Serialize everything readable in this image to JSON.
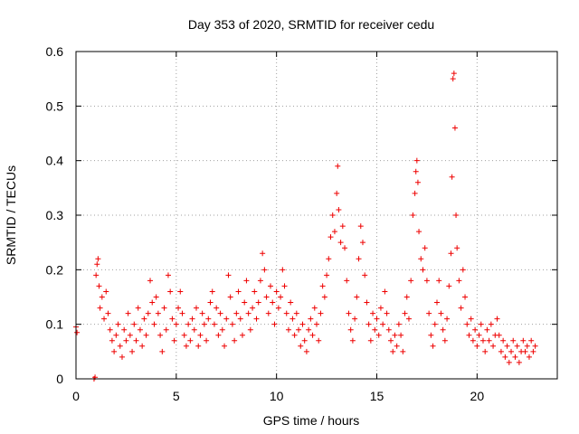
{
  "chart_data": {
    "type": "scatter",
    "title": "Day 353 of 2020, SRMTID for receiver cedu",
    "xlabel": "GPS time / hours",
    "ylabel": "SRMTID / TECUs",
    "xlim": [
      0,
      24
    ],
    "ylim": [
      0,
      0.6
    ],
    "xticks": [
      0,
      5,
      10,
      15,
      20
    ],
    "yticks": [
      0,
      0.1,
      0.2,
      0.3,
      0.4,
      0.5,
      0.6
    ],
    "xtick_labels": [
      "0",
      "5",
      "10",
      "15",
      "20"
    ],
    "ytick_labels": [
      "0",
      "0.1",
      "0.2",
      "0.3",
      "0.4",
      "0.5",
      "0.6"
    ],
    "grid": true,
    "marker": "+",
    "color": "#ee0000",
    "series": [
      {
        "name": "SRMTID",
        "points": [
          [
            0.0,
            0.095
          ],
          [
            0.05,
            0.085
          ],
          [
            0.9,
            0.0
          ],
          [
            0.95,
            0.003
          ],
          [
            1.0,
            0.19
          ],
          [
            1.05,
            0.21
          ],
          [
            1.1,
            0.22
          ],
          [
            1.15,
            0.17
          ],
          [
            1.2,
            0.13
          ],
          [
            1.3,
            0.15
          ],
          [
            1.4,
            0.11
          ],
          [
            1.5,
            0.16
          ],
          [
            1.6,
            0.12
          ],
          [
            1.7,
            0.09
          ],
          [
            1.8,
            0.07
          ],
          [
            1.9,
            0.05
          ],
          [
            2.0,
            0.08
          ],
          [
            2.1,
            0.1
          ],
          [
            2.2,
            0.06
          ],
          [
            2.3,
            0.04
          ],
          [
            2.4,
            0.09
          ],
          [
            2.5,
            0.07
          ],
          [
            2.6,
            0.12
          ],
          [
            2.7,
            0.08
          ],
          [
            2.8,
            0.05
          ],
          [
            2.9,
            0.1
          ],
          [
            3.0,
            0.07
          ],
          [
            3.1,
            0.13
          ],
          [
            3.2,
            0.09
          ],
          [
            3.3,
            0.06
          ],
          [
            3.4,
            0.11
          ],
          [
            3.5,
            0.08
          ],
          [
            3.6,
            0.12
          ],
          [
            3.7,
            0.18
          ],
          [
            3.8,
            0.14
          ],
          [
            3.9,
            0.1
          ],
          [
            4.0,
            0.15
          ],
          [
            4.1,
            0.12
          ],
          [
            4.2,
            0.08
          ],
          [
            4.3,
            0.05
          ],
          [
            4.4,
            0.13
          ],
          [
            4.5,
            0.09
          ],
          [
            4.6,
            0.19
          ],
          [
            4.7,
            0.16
          ],
          [
            4.8,
            0.11
          ],
          [
            4.9,
            0.07
          ],
          [
            5.0,
            0.1
          ],
          [
            5.1,
            0.13
          ],
          [
            5.2,
            0.16
          ],
          [
            5.3,
            0.12
          ],
          [
            5.4,
            0.08
          ],
          [
            5.5,
            0.06
          ],
          [
            5.6,
            0.1
          ],
          [
            5.7,
            0.07
          ],
          [
            5.8,
            0.11
          ],
          [
            5.9,
            0.09
          ],
          [
            6.0,
            0.13
          ],
          [
            6.1,
            0.06
          ],
          [
            6.2,
            0.08
          ],
          [
            6.3,
            0.12
          ],
          [
            6.4,
            0.1
          ],
          [
            6.5,
            0.07
          ],
          [
            6.6,
            0.11
          ],
          [
            6.7,
            0.14
          ],
          [
            6.8,
            0.16
          ],
          [
            6.9,
            0.1
          ],
          [
            7.0,
            0.13
          ],
          [
            7.1,
            0.08
          ],
          [
            7.2,
            0.12
          ],
          [
            7.3,
            0.09
          ],
          [
            7.4,
            0.06
          ],
          [
            7.5,
            0.11
          ],
          [
            7.6,
            0.19
          ],
          [
            7.7,
            0.15
          ],
          [
            7.8,
            0.1
          ],
          [
            7.9,
            0.07
          ],
          [
            8.0,
            0.12
          ],
          [
            8.1,
            0.16
          ],
          [
            8.2,
            0.11
          ],
          [
            8.3,
            0.08
          ],
          [
            8.4,
            0.14
          ],
          [
            8.5,
            0.18
          ],
          [
            8.6,
            0.12
          ],
          [
            8.7,
            0.09
          ],
          [
            8.8,
            0.13
          ],
          [
            8.9,
            0.16
          ],
          [
            9.0,
            0.11
          ],
          [
            9.1,
            0.14
          ],
          [
            9.2,
            0.18
          ],
          [
            9.3,
            0.23
          ],
          [
            9.4,
            0.2
          ],
          [
            9.5,
            0.15
          ],
          [
            9.6,
            0.12
          ],
          [
            9.7,
            0.17
          ],
          [
            9.8,
            0.14
          ],
          [
            9.9,
            0.1
          ],
          [
            10.0,
            0.16
          ],
          [
            10.1,
            0.13
          ],
          [
            10.2,
            0.15
          ],
          [
            10.3,
            0.2
          ],
          [
            10.4,
            0.17
          ],
          [
            10.5,
            0.12
          ],
          [
            10.6,
            0.09
          ],
          [
            10.7,
            0.14
          ],
          [
            10.8,
            0.11
          ],
          [
            10.9,
            0.08
          ],
          [
            11.0,
            0.12
          ],
          [
            11.1,
            0.09
          ],
          [
            11.2,
            0.06
          ],
          [
            11.3,
            0.1
          ],
          [
            11.4,
            0.07
          ],
          [
            11.5,
            0.05
          ],
          [
            11.6,
            0.09
          ],
          [
            11.7,
            0.11
          ],
          [
            11.8,
            0.08
          ],
          [
            11.9,
            0.13
          ],
          [
            12.0,
            0.1
          ],
          [
            12.1,
            0.07
          ],
          [
            12.2,
            0.12
          ],
          [
            12.3,
            0.17
          ],
          [
            12.4,
            0.15
          ],
          [
            12.5,
            0.19
          ],
          [
            12.6,
            0.22
          ],
          [
            12.7,
            0.26
          ],
          [
            12.8,
            0.3
          ],
          [
            12.9,
            0.27
          ],
          [
            13.0,
            0.34
          ],
          [
            13.05,
            0.39
          ],
          [
            13.1,
            0.31
          ],
          [
            13.2,
            0.25
          ],
          [
            13.3,
            0.28
          ],
          [
            13.4,
            0.24
          ],
          [
            13.5,
            0.18
          ],
          [
            13.6,
            0.12
          ],
          [
            13.7,
            0.09
          ],
          [
            13.8,
            0.07
          ],
          [
            13.9,
            0.11
          ],
          [
            14.0,
            0.15
          ],
          [
            14.1,
            0.22
          ],
          [
            14.2,
            0.28
          ],
          [
            14.3,
            0.25
          ],
          [
            14.4,
            0.19
          ],
          [
            14.5,
            0.14
          ],
          [
            14.6,
            0.1
          ],
          [
            14.7,
            0.07
          ],
          [
            14.8,
            0.12
          ],
          [
            14.9,
            0.09
          ],
          [
            15.0,
            0.11
          ],
          [
            15.1,
            0.08
          ],
          [
            15.2,
            0.13
          ],
          [
            15.3,
            0.1
          ],
          [
            15.4,
            0.16
          ],
          [
            15.5,
            0.12
          ],
          [
            15.6,
            0.09
          ],
          [
            15.7,
            0.07
          ],
          [
            15.8,
            0.05
          ],
          [
            15.9,
            0.08
          ],
          [
            16.0,
            0.06
          ],
          [
            16.1,
            0.1
          ],
          [
            16.2,
            0.08
          ],
          [
            16.3,
            0.05
          ],
          [
            16.4,
            0.12
          ],
          [
            16.5,
            0.15
          ],
          [
            16.6,
            0.11
          ],
          [
            16.7,
            0.18
          ],
          [
            16.8,
            0.3
          ],
          [
            16.9,
            0.34
          ],
          [
            16.95,
            0.38
          ],
          [
            17.0,
            0.4
          ],
          [
            17.05,
            0.36
          ],
          [
            17.1,
            0.27
          ],
          [
            17.2,
            0.22
          ],
          [
            17.3,
            0.2
          ],
          [
            17.4,
            0.24
          ],
          [
            17.5,
            0.18
          ],
          [
            17.6,
            0.12
          ],
          [
            17.7,
            0.08
          ],
          [
            17.8,
            0.06
          ],
          [
            17.9,
            0.1
          ],
          [
            18.0,
            0.14
          ],
          [
            18.1,
            0.18
          ],
          [
            18.2,
            0.12
          ],
          [
            18.3,
            0.09
          ],
          [
            18.4,
            0.07
          ],
          [
            18.5,
            0.11
          ],
          [
            18.6,
            0.17
          ],
          [
            18.7,
            0.23
          ],
          [
            18.75,
            0.37
          ],
          [
            18.8,
            0.55
          ],
          [
            18.85,
            0.56
          ],
          [
            18.9,
            0.46
          ],
          [
            18.95,
            0.3
          ],
          [
            19.0,
            0.24
          ],
          [
            19.1,
            0.18
          ],
          [
            19.2,
            0.13
          ],
          [
            19.3,
            0.2
          ],
          [
            19.4,
            0.15
          ],
          [
            19.5,
            0.1
          ],
          [
            19.6,
            0.08
          ],
          [
            19.7,
            0.11
          ],
          [
            19.8,
            0.07
          ],
          [
            19.9,
            0.09
          ],
          [
            20.0,
            0.06
          ],
          [
            20.1,
            0.08
          ],
          [
            20.2,
            0.1
          ],
          [
            20.3,
            0.07
          ],
          [
            20.4,
            0.05
          ],
          [
            20.5,
            0.09
          ],
          [
            20.6,
            0.07
          ],
          [
            20.7,
            0.1
          ],
          [
            20.8,
            0.06
          ],
          [
            20.9,
            0.08
          ],
          [
            21.0,
            0.11
          ],
          [
            21.1,
            0.08
          ],
          [
            21.2,
            0.05
          ],
          [
            21.3,
            0.07
          ],
          [
            21.4,
            0.04
          ],
          [
            21.5,
            0.06
          ],
          [
            21.6,
            0.03
          ],
          [
            21.7,
            0.05
          ],
          [
            21.8,
            0.07
          ],
          [
            21.9,
            0.04
          ],
          [
            22.0,
            0.06
          ],
          [
            22.1,
            0.03
          ],
          [
            22.2,
            0.05
          ],
          [
            22.3,
            0.07
          ],
          [
            22.4,
            0.05
          ],
          [
            22.5,
            0.06
          ],
          [
            22.6,
            0.04
          ],
          [
            22.7,
            0.07
          ],
          [
            22.8,
            0.05
          ],
          [
            22.9,
            0.06
          ]
        ]
      }
    ]
  }
}
